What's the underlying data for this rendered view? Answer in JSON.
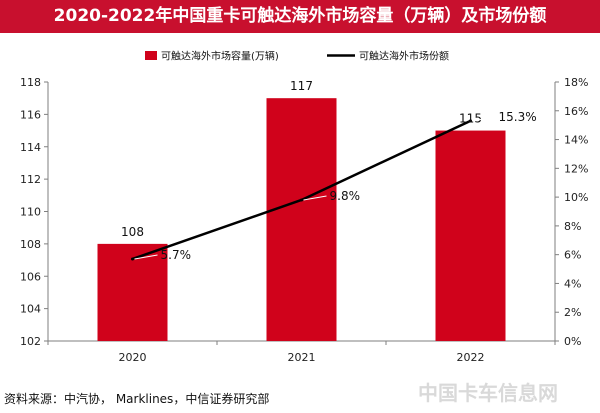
{
  "header": {
    "title": "2020-2022年中国重卡可触达海外市场容量（万辆）及市场份额"
  },
  "chart_data": {
    "type": "bar",
    "categories": [
      "2020",
      "2021",
      "2022"
    ],
    "series": [
      {
        "name": "可触达海外市场容量(万辆)",
        "type": "bar",
        "axis": "left",
        "color": "#d0021b",
        "values": [
          108,
          117,
          115
        ],
        "labels": [
          "108",
          "117",
          "115"
        ]
      },
      {
        "name": "可触达海外市场份额",
        "type": "line",
        "axis": "right",
        "color": "#000000",
        "values": [
          5.7,
          9.8,
          15.3
        ],
        "labels": [
          "5.7%",
          "9.8%",
          "15.3%"
        ]
      }
    ],
    "y_left": {
      "min": 102,
      "max": 118,
      "step": 2,
      "ticks": [
        "102",
        "104",
        "106",
        "108",
        "110",
        "112",
        "114",
        "116",
        "118"
      ]
    },
    "y_right": {
      "min": 0,
      "max": 18,
      "step": 2,
      "ticks": [
        "0%",
        "2%",
        "4%",
        "6%",
        "8%",
        "10%",
        "12%",
        "14%",
        "16%",
        "18%"
      ]
    },
    "legend_position": "top-center",
    "grid": false
  },
  "footer": {
    "source": "资料来源：中汽协， Marklines，中信证券研究部"
  },
  "watermark": {
    "text": "中国卡车信息网"
  }
}
